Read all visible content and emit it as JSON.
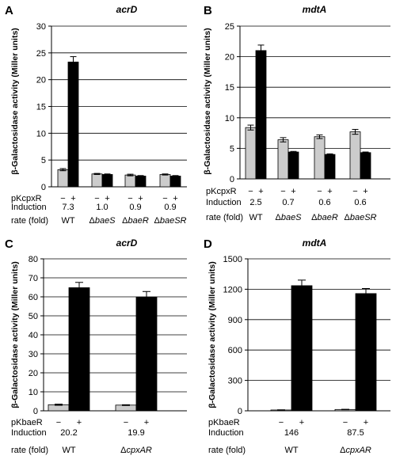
{
  "chart_data": [
    {
      "type": "bar",
      "panel": "A",
      "title": "acrD",
      "ylabel": "β-Galactosidase activity (Miller units)",
      "ylim": [
        0,
        30
      ],
      "yticks": [
        "0",
        "5",
        "10",
        "15",
        "20",
        "25",
        "30"
      ],
      "plasmid_label": "pKcpxR",
      "minus_label": "−",
      "plus_label": "+",
      "row1_label": "Induction",
      "row2_label": "rate (fold)",
      "groups": [
        {
          "label": "WT",
          "label_prefix": "",
          "label_italic": "",
          "induction": "7.3",
          "minus": 3.2,
          "plus": 23.3,
          "minus_err": 0.2,
          "plus_err": 1.0
        },
        {
          "label": "ΔbaeS",
          "label_prefix": "Δ",
          "label_italic": "baeS",
          "induction": "1.0",
          "minus": 2.4,
          "plus": 2.3,
          "minus_err": 0.1,
          "plus_err": 0.1
        },
        {
          "label": "ΔbaeR",
          "label_prefix": "Δ",
          "label_italic": "baeR",
          "induction": "0.9",
          "minus": 2.2,
          "plus": 2.0,
          "minus_err": 0.15,
          "plus_err": 0.1
        },
        {
          "label": "ΔbaeSR",
          "label_prefix": "Δ",
          "label_italic": "baeSR",
          "induction": "0.9",
          "minus": 2.3,
          "plus": 2.0,
          "minus_err": 0.1,
          "plus_err": 0.1
        }
      ]
    },
    {
      "type": "bar",
      "panel": "B",
      "title": "mdtA",
      "ylabel": "β-Galactosidase activity (Miller units)",
      "ylim": [
        0,
        25
      ],
      "yticks": [
        "0",
        "5",
        "10",
        "15",
        "20",
        "25"
      ],
      "plasmid_label": "pKcpxR",
      "minus_label": "−",
      "plus_label": "+",
      "row1_label": "Induction",
      "row2_label": "rate (fold)",
      "groups": [
        {
          "label": "WT",
          "label_prefix": "",
          "label_italic": "",
          "induction": "2.5",
          "minus": 8.4,
          "plus": 21.0,
          "minus_err": 0.4,
          "plus_err": 0.9
        },
        {
          "label": "ΔbaeS",
          "label_prefix": "Δ",
          "label_italic": "baeS",
          "induction": "0.7",
          "minus": 6.4,
          "plus": 4.4,
          "minus_err": 0.35,
          "plus_err": 0.1
        },
        {
          "label": "ΔbaeR",
          "label_prefix": "Δ",
          "label_italic": "baeR",
          "induction": "0.6",
          "minus": 6.9,
          "plus": 4.0,
          "minus_err": 0.3,
          "plus_err": 0.1
        },
        {
          "label": "ΔbaeSR",
          "label_prefix": "Δ",
          "label_italic": "baeSR",
          "induction": "0.6",
          "minus": 7.7,
          "plus": 4.3,
          "minus_err": 0.4,
          "plus_err": 0.1
        }
      ]
    },
    {
      "type": "bar",
      "panel": "C",
      "title": "acrD",
      "ylabel": "β-Galactosidase activity (Miller units)",
      "ylim": [
        0,
        80
      ],
      "yticks": [
        "0",
        "10",
        "20",
        "30",
        "40",
        "50",
        "60",
        "70",
        "80"
      ],
      "plasmid_label": "pKbaeR",
      "minus_label": "−",
      "plus_label": "+",
      "row1_label": "Induction",
      "row2_label": "rate (fold)",
      "groups": [
        {
          "label": "WT",
          "label_prefix": "",
          "label_italic": "",
          "induction": "20.2",
          "minus": 3.2,
          "plus": 64.8,
          "minus_err": 0.3,
          "plus_err": 2.8
        },
        {
          "label": "ΔcpxAR",
          "label_prefix": "Δ",
          "label_italic": "cpxAR",
          "induction": "19.9",
          "minus": 3.0,
          "plus": 59.8,
          "minus_err": 0.2,
          "plus_err": 3.0
        }
      ]
    },
    {
      "type": "bar",
      "panel": "D",
      "title": "mdtA",
      "ylabel": "β-Galactosidase activity (Miller units)",
      "ylim": [
        0,
        1500
      ],
      "yticks": [
        "0",
        "300",
        "600",
        "900",
        "1200",
        "1500"
      ],
      "plasmid_label": "pKbaeR",
      "minus_label": "−",
      "plus_label": "+",
      "row1_label": "Induction",
      "row2_label": "rate (fold)",
      "groups": [
        {
          "label": "WT",
          "label_prefix": "",
          "label_italic": "",
          "induction": "146",
          "minus": 8,
          "plus": 1235,
          "minus_err": 2,
          "plus_err": 55
        },
        {
          "label": "ΔcpxAR",
          "label_prefix": "Δ",
          "label_italic": "cpxAR",
          "induction": "87.5",
          "minus": 13,
          "plus": 1157,
          "minus_err": 2,
          "plus_err": 50
        }
      ]
    }
  ],
  "colors": {
    "minus_bar": "#cccccc",
    "plus_bar": "#000000",
    "axis": "#000000",
    "grid": "#000000"
  }
}
